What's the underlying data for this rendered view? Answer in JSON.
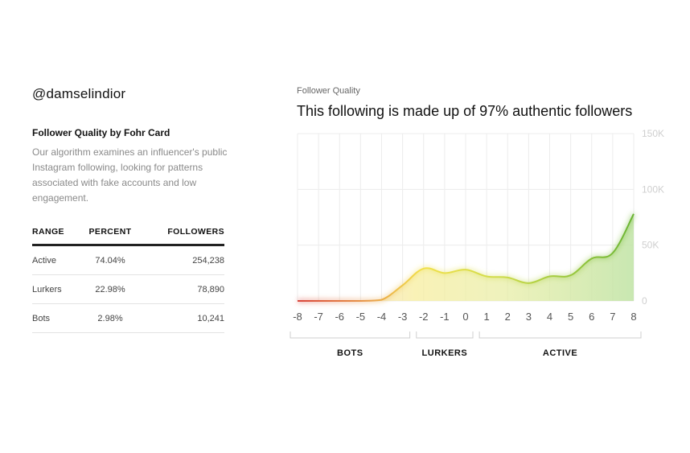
{
  "profile": {
    "handle": "@damselindior"
  },
  "card": {
    "title": "Follower Quality by Fohr Card",
    "description": "Our algorithm examines an influencer's public Instagram following, looking for patterns associated with fake accounts and low engagement."
  },
  "table": {
    "headers": [
      "RANGE",
      "PERCENT",
      "FOLLOWERS"
    ],
    "rows": [
      {
        "range": "Active",
        "percent": "74.04%",
        "followers": "254,238"
      },
      {
        "range": "Lurkers",
        "percent": "22.98%",
        "followers": "78,890"
      },
      {
        "range": "Bots",
        "percent": "2.98%",
        "followers": "10,241"
      }
    ]
  },
  "chart_header": {
    "label": "Follower Quality",
    "title": "This following is made up of 97% authentic followers"
  },
  "chart_data": {
    "type": "area",
    "x": [
      -8,
      -7,
      -6,
      -5,
      -4,
      -3,
      -2,
      -1,
      0,
      1,
      2,
      3,
      4,
      5,
      6,
      7,
      8
    ],
    "x_tick_labels": [
      "-8",
      "-7",
      "-6",
      "-5",
      "-4",
      "-3",
      "-2",
      "-1",
      "0",
      "1",
      "2",
      "3",
      "4",
      "5",
      "6",
      "7",
      "8"
    ],
    "series": [
      {
        "values": [
          0,
          0,
          0,
          0,
          1000,
          14000,
          29000,
          25000,
          28000,
          22000,
          21000,
          16000,
          22000,
          23000,
          38000,
          43000,
          78000
        ]
      }
    ],
    "ylim": [
      0,
      150000
    ],
    "y_ticks": [
      0,
      50000,
      100000,
      150000
    ],
    "y_tick_labels": [
      "0",
      "50K",
      "100K",
      "150K"
    ],
    "y_axis_side": "right",
    "grid": true,
    "groups": [
      {
        "label": "BOTS",
        "from": -8,
        "to": -3
      },
      {
        "label": "LURKERS",
        "from": -2,
        "to": 0
      },
      {
        "label": "ACTIVE",
        "from": 1,
        "to": 8
      }
    ],
    "colors": {
      "bots": "#d9443a",
      "lurkers": "#f2e04a",
      "active": "#6ab533"
    }
  }
}
